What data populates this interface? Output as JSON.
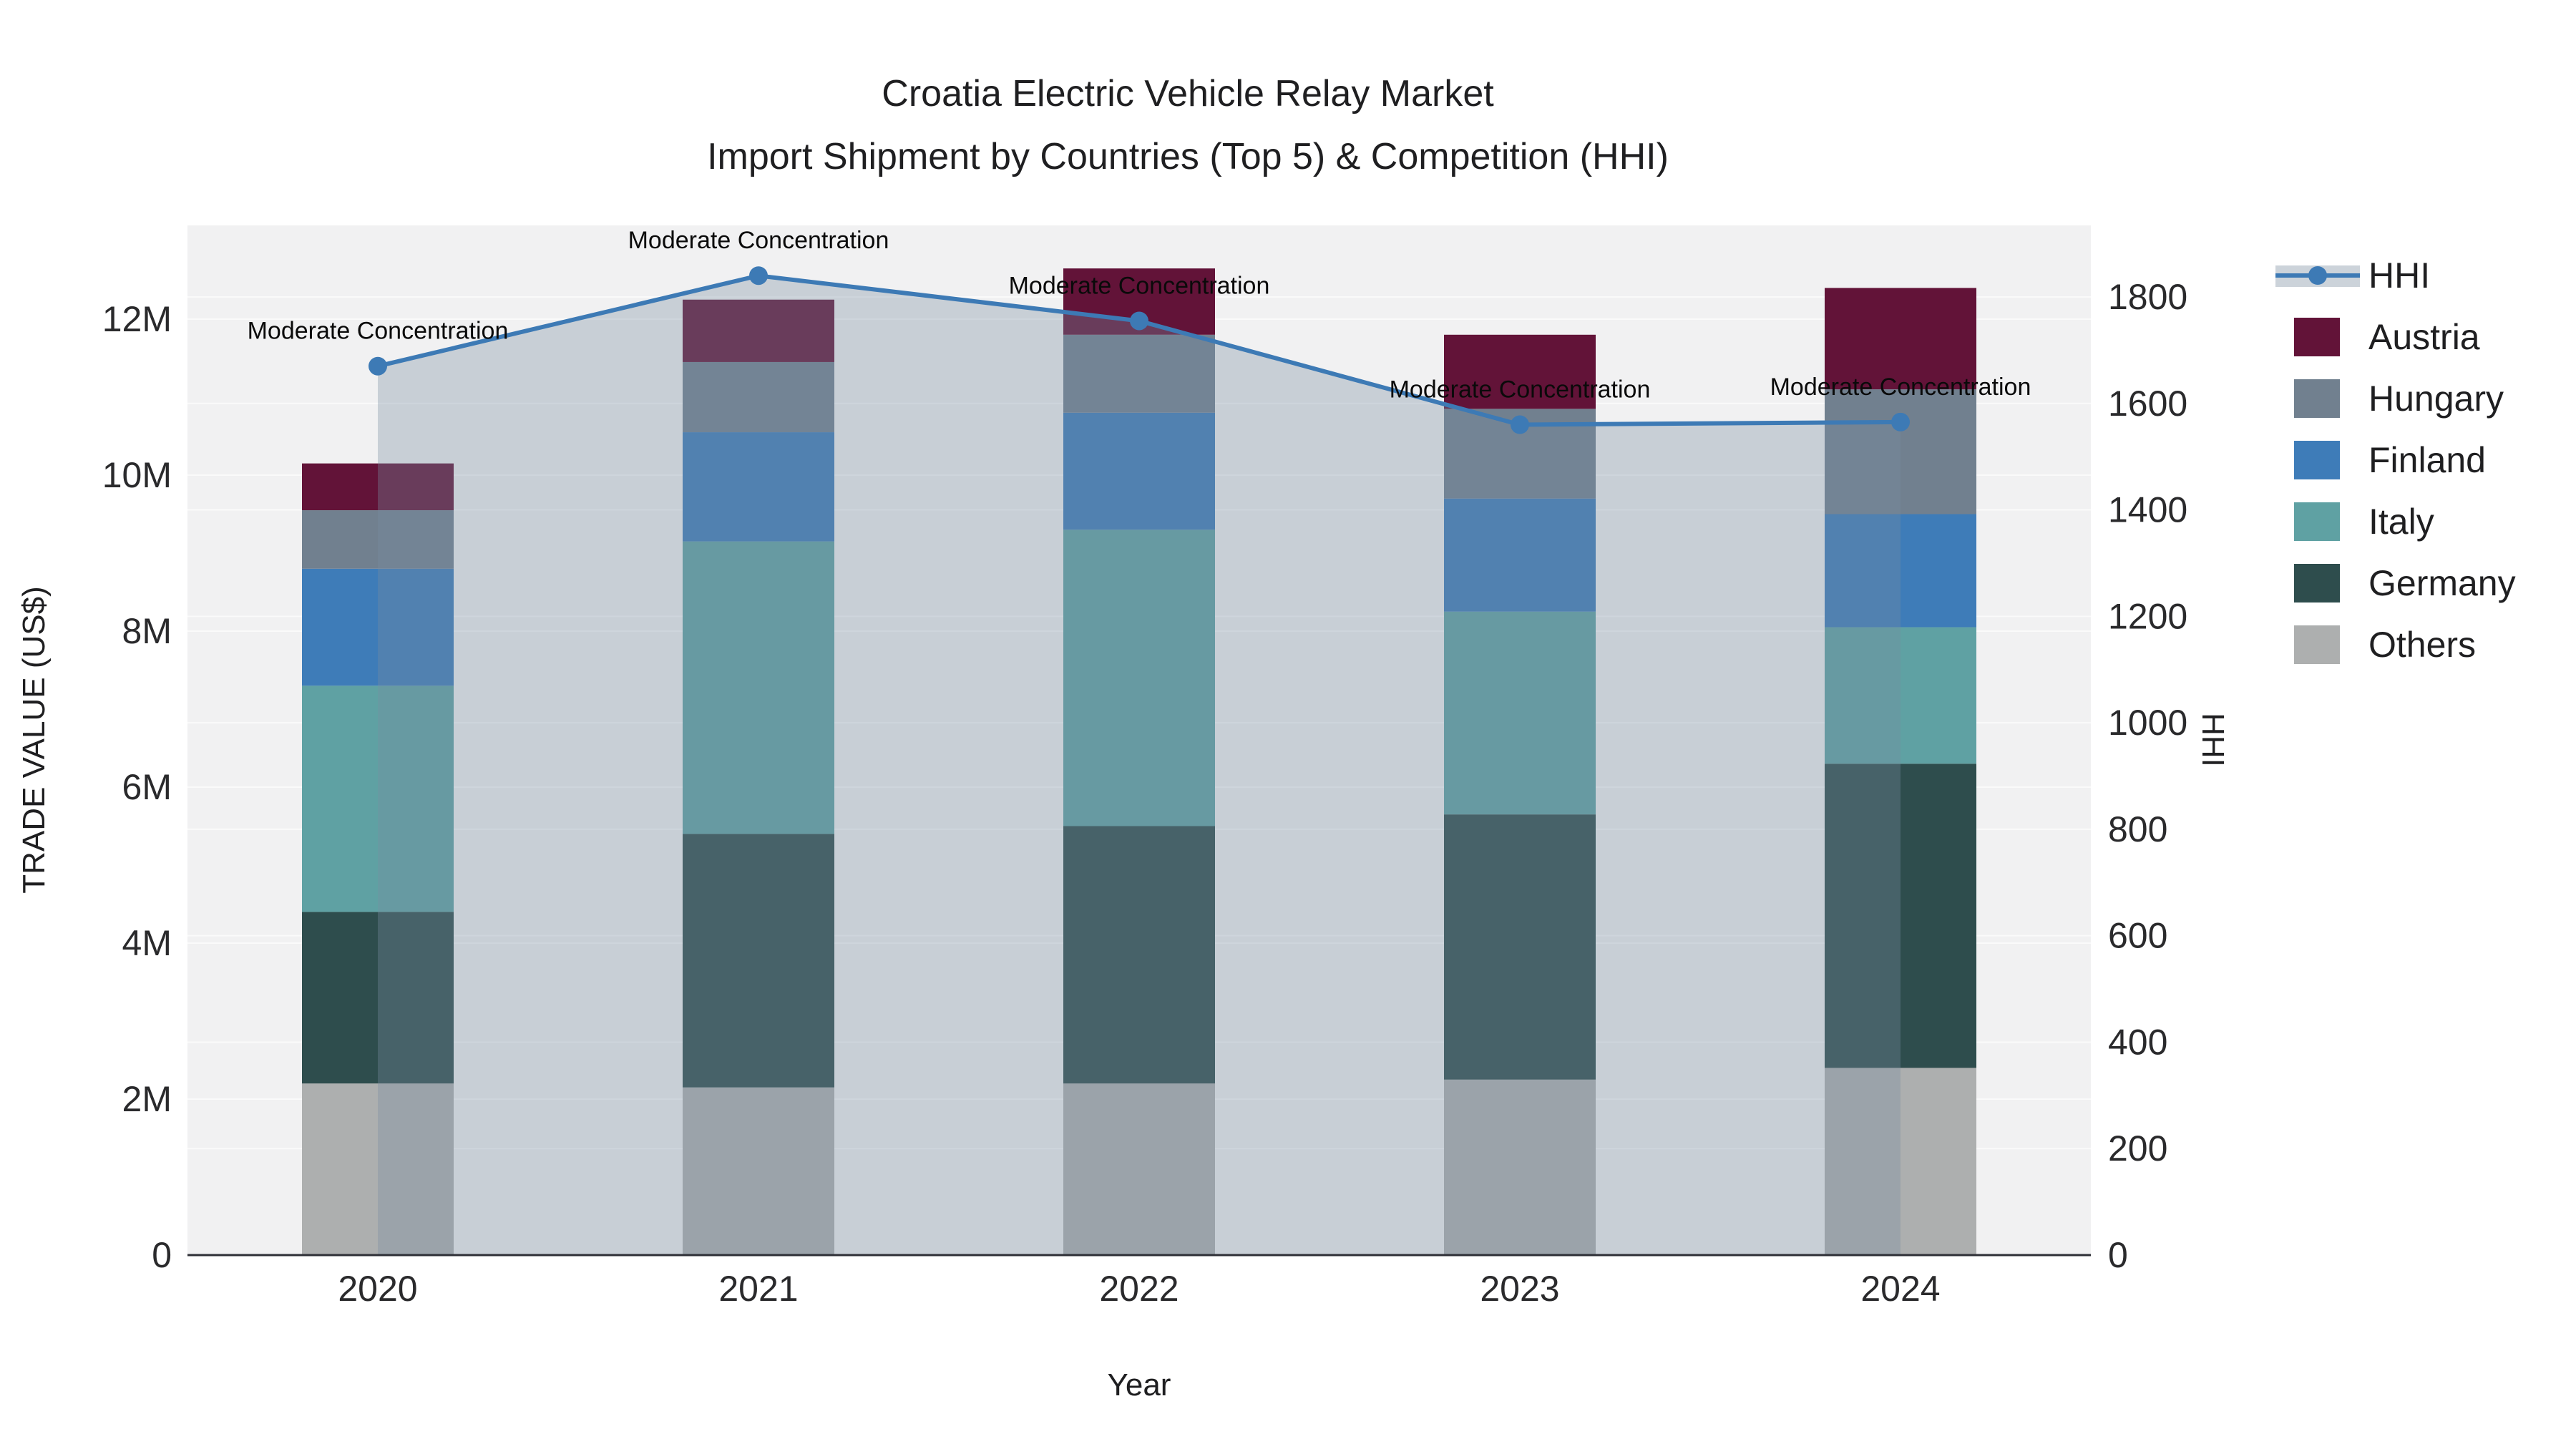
{
  "title": {
    "line1": "Croatia Electric Vehicle Relay Market",
    "line2": "Import Shipment by Countries (Top 5) & Competition (HHI)"
  },
  "axes": {
    "x_title": "Year",
    "y_left_title": "TRADE VALUE (US$)",
    "y_right_title": "HHI"
  },
  "chart_data": {
    "type": "bar",
    "subtype": "stacked bars with HHI line overlay (area filled to zero)",
    "categories": [
      "2020",
      "2021",
      "2022",
      "2023",
      "2024"
    ],
    "bar_value_unit": "million US$",
    "series": [
      {
        "name": "Others",
        "color": "#ADAFAF",
        "values": [
          2.2,
          2.15,
          2.2,
          2.25,
          2.4
        ]
      },
      {
        "name": "Germany",
        "color": "#2E4D4D",
        "values": [
          2.2,
          3.25,
          3.3,
          3.4,
          3.9
        ]
      },
      {
        "name": "Italy",
        "color": "#5FA1A3",
        "values": [
          2.9,
          3.75,
          3.8,
          2.6,
          1.75
        ]
      },
      {
        "name": "Finland",
        "color": "#3E7CB8",
        "values": [
          1.5,
          1.4,
          1.5,
          1.45,
          1.45
        ]
      },
      {
        "name": "Hungary",
        "color": "#71808F",
        "values": [
          0.75,
          0.9,
          1.0,
          1.15,
          1.6
        ]
      },
      {
        "name": "Austria",
        "color": "#621338",
        "values": [
          0.6,
          0.8,
          0.85,
          0.95,
          1.3
        ]
      }
    ],
    "totals": [
      10.15,
      12.25,
      12.65,
      11.8,
      12.4
    ],
    "line_series": {
      "name": "HHI",
      "color": "#3D7AB5",
      "area_fill": "rgba(120,140,160,0.34)",
      "values": [
        1670,
        1840,
        1755,
        1560,
        1565
      ]
    },
    "annotations": [
      {
        "x": "2020",
        "text": "Moderate Concentration"
      },
      {
        "x": "2021",
        "text": "Moderate Concentration"
      },
      {
        "x": "2022",
        "text": "Moderate Concentration"
      },
      {
        "x": "2023",
        "text": "Moderate Concentration"
      },
      {
        "x": "2024",
        "text": "Moderate Concentration"
      }
    ],
    "y_left": {
      "label": "TRADE VALUE (US$)",
      "tick_labels": [
        "0",
        "2M",
        "4M",
        "6M",
        "8M",
        "10M",
        "12M"
      ],
      "tick_values": [
        0,
        2,
        4,
        6,
        8,
        10,
        12
      ],
      "range_m": [
        0,
        13.2
      ],
      "grid": true
    },
    "y_right": {
      "label": "HHI",
      "tick_values": [
        0,
        200,
        400,
        600,
        800,
        1000,
        1200,
        1400,
        1600,
        1800
      ],
      "range": [
        0,
        1800
      ],
      "grid": true
    },
    "legend_position": "right"
  },
  "legend": {
    "items": [
      {
        "label": "HHI",
        "type": "line",
        "color": "#3D7AB5"
      },
      {
        "label": "Austria",
        "type": "swatch",
        "color": "#621338"
      },
      {
        "label": "Hungary",
        "type": "swatch",
        "color": "#71808F"
      },
      {
        "label": "Finland",
        "type": "swatch",
        "color": "#3E7CB8"
      },
      {
        "label": "Italy",
        "type": "swatch",
        "color": "#5FA1A3"
      },
      {
        "label": "Germany",
        "type": "swatch",
        "color": "#2E4D4D"
      },
      {
        "label": "Others",
        "type": "swatch",
        "color": "#ADAFAF"
      }
    ]
  },
  "colors": {
    "plot_bg": "#F1F1F2",
    "gridline": "#FAFAFA",
    "axis_line": "#2E2F36",
    "hhi_line": "#3D7AB5",
    "area_fill": "rgba(120,140,160,0.34)"
  }
}
